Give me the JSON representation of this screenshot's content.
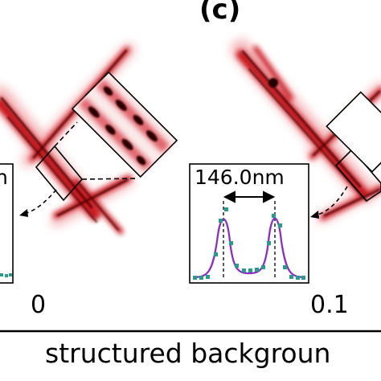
{
  "panel": {
    "label": "(c)"
  },
  "left_panel": {
    "value_label": "0",
    "measurement_text_partial": "n"
  },
  "right_panel": {
    "value_label": "0.1",
    "measurement": "146.0nm"
  },
  "axis": {
    "label": "structured backgroun"
  },
  "colors": {
    "filament_red": "#c8141e",
    "filament_dark": "#2a0000",
    "curve_purple": "#8a2fc0",
    "marker_teal": "#2a9a8a"
  }
}
